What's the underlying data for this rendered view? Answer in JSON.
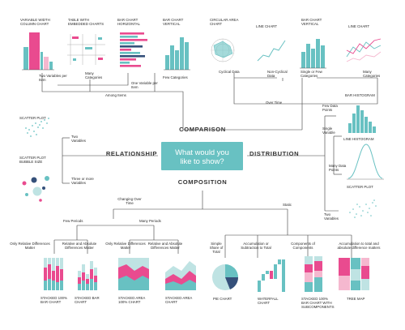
{
  "center_question": "What would you like to show?",
  "branches": {
    "comparison": "COMPARISON",
    "relationship": "RELATIONSHIP",
    "distribution": "DISTRIBUTION",
    "composition": "COMPOSITION"
  },
  "comparison": {
    "among_items": "Among Items",
    "over_time": "Over Time",
    "two_vars_per_item": "Two Variables per Item",
    "one_var_per_item": "One Variable per Item",
    "many_categories_a": "Many Categories",
    "few_categories": "Few Categories",
    "cyclical_data": "Cyclical Data",
    "non_cyclical_data": "Non-Cyclical Data",
    "single_or_few_categories": "Single or Few Categories",
    "many_categories_b": "Many Categories",
    "charts": {
      "variable_width": "VARIABLE WIDTH COLUMN CHART",
      "table_embedded": "TABLE WITH EMBEDDED CHARTS",
      "bar_horizontal": "BAR CHART HORIZONTAL",
      "bar_vertical_a": "BAR CHART VERTICAL",
      "circular_area": "CIRCULAR AREA CHART",
      "line_chart_a": "LINE CHART",
      "bar_vertical_b": "BAR CHART VERTICAL",
      "line_chart_b": "LINE CHART"
    }
  },
  "relationship": {
    "scatter_plot": "SCATTER PLOT",
    "scatter_bubble": "SCATTER PLOT BUBBLE SIZE",
    "two_variables": "Two Variables",
    "three_or_more": "Three or more Variables"
  },
  "distribution": {
    "single_variable": "Single Variable",
    "few_data_points": "Few Data Points",
    "many_data_points": "Many Data Points",
    "two_variables": "Two Variables",
    "bar_histogram": "BAR HISTOGRAM",
    "line_histogram": "LINE HISTOGRAM",
    "scatter_plot": "SCATTER PLOT"
  },
  "composition": {
    "changing_over_time": "Changing Over Time",
    "static": "Static",
    "few_periods": "Few Periods",
    "many_periods": "Many Periods",
    "only_relative_a": "Only Relative Differences Matter",
    "relative_absolute_a": "Relative and Absolute Differences Matter",
    "only_relative_b": "Only Relative Differences Matter",
    "relative_absolute_b": "Relative and Absolute Differences Matter",
    "simple_share": "Simple Share of Total",
    "accumulation": "Accumulation or Subtraction to Total",
    "components": "Components of Components",
    "accumulation_total": "Accumulation to total and absolute difference matters",
    "charts": {
      "stacked_100_bar": "STACKED 100% BAR CHART",
      "stacked_bar": "STACKED BAR CHART",
      "stacked_area_100": "STACKED AREA 100% CHART",
      "stacked_area": "STACKED AREA CHART",
      "pie": "PIE CHART",
      "waterfall": "WATERFALL CHART",
      "stacked_100_sub": "STACKED 100% BAR CHART WITH SUBCOMPONENTS",
      "tree_map": "TREE MAP"
    }
  },
  "colors": {
    "teal": "#68c1c2",
    "pink": "#e94b8f",
    "lightpink": "#f5b8cf",
    "lightteal": "#bfe3e3",
    "navy": "#35507a",
    "line": "#3c3c3c"
  }
}
